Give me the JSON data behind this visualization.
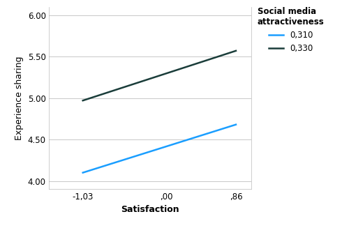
{
  "x_values": [
    -1.03,
    0.86
  ],
  "x_ticks": [
    -1.03,
    0.0,
    0.86
  ],
  "x_tick_labels": [
    "-1,03",
    ",00",
    ",86"
  ],
  "xlabel": "Satisfaction",
  "ylabel": "Experience sharing",
  "ylim": [
    3.9,
    6.1
  ],
  "xlim": [
    -1.45,
    1.05
  ],
  "yticks": [
    4.0,
    4.5,
    5.0,
    5.5,
    6.0
  ],
  "ytick_labels": [
    "4.00",
    "4.50",
    "5.00",
    "5.50",
    "6.00"
  ],
  "line_low": {
    "y_values": [
      4.1,
      4.68
    ],
    "color": "#1A9EFF",
    "label": "0,310",
    "linewidth": 1.8
  },
  "line_high": {
    "y_values": [
      4.97,
      5.57
    ],
    "color": "#1A3D3A",
    "label": "0,330",
    "linewidth": 1.8
  },
  "legend_title": "Social media\nattractiveness",
  "legend_title_fontsize": 8.5,
  "legend_fontsize": 8.5,
  "axis_label_fontsize": 9,
  "tick_fontsize": 8.5,
  "background_color": "#FFFFFF",
  "grid_color": "#C8C8C8"
}
